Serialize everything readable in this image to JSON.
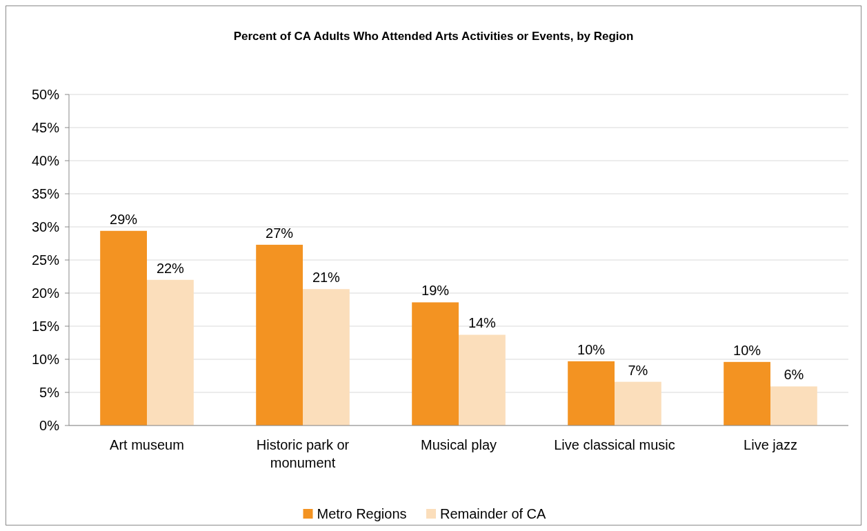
{
  "chart_data": {
    "type": "bar",
    "title": "Percent of CA Adults Who Attended Arts Activities or Events, by Region",
    "categories": [
      "Art museum",
      "Historic park or monument",
      "Musical play",
      "Live classical music",
      "Live jazz"
    ],
    "series": [
      {
        "name": "Metro Regions",
        "color": "#f39322",
        "values": [
          29.4,
          27.3,
          18.6,
          9.7,
          9.6
        ],
        "value_labels": [
          "29%",
          "27%",
          "19%",
          "10%",
          "10%"
        ]
      },
      {
        "name": "Remainder of CA",
        "color": "#fbdebb",
        "values": [
          22.0,
          20.6,
          13.7,
          6.6,
          5.9
        ],
        "value_labels": [
          "22%",
          "21%",
          "14%",
          "7%",
          "6%"
        ]
      }
    ],
    "ylim": [
      0,
      50
    ],
    "yticks": [
      {
        "value": 0,
        "label": "0%"
      },
      {
        "value": 5,
        "label": "5%"
      },
      {
        "value": 10,
        "label": "10%"
      },
      {
        "value": 15,
        "label": "15%"
      },
      {
        "value": 20,
        "label": "20%"
      },
      {
        "value": 25,
        "label": "25%"
      },
      {
        "value": 30,
        "label": "30%"
      },
      {
        "value": 35,
        "label": "35%"
      },
      {
        "value": 40,
        "label": "40%"
      },
      {
        "value": 45,
        "label": "45%"
      },
      {
        "value": 50,
        "label": "50%"
      }
    ],
    "grid": "y",
    "legend": "bottom"
  }
}
